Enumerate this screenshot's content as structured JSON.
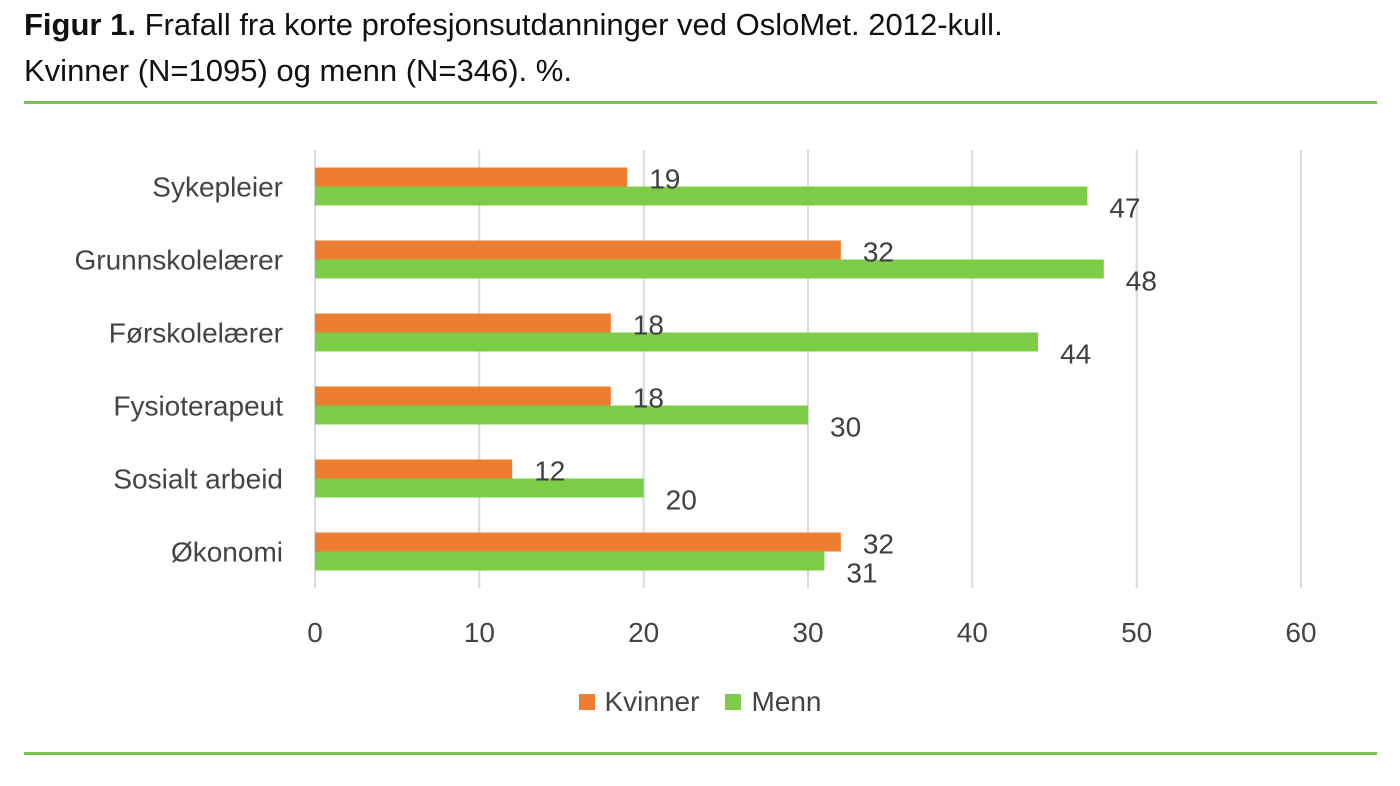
{
  "caption": {
    "label": "Figur 1.",
    "line1": "Frafall fra korte profesjonsutdanninger ved OsloMet. 2012-kull.",
    "line2": "Kvinner (N=1095) og menn (N=346). %."
  },
  "chart_data": {
    "type": "bar",
    "orientation": "horizontal",
    "title": "",
    "xlabel": "",
    "ylabel": "",
    "categories": [
      "Sykepleier",
      "Grunnskolelærer",
      "Førskolelærer",
      "Fysioterapeut",
      "Sosialt arbeid",
      "Økonomi"
    ],
    "series": [
      {
        "name": "Kvinner",
        "color": "#ed7d31",
        "values": [
          19,
          32,
          18,
          18,
          12,
          32
        ]
      },
      {
        "name": "Menn",
        "color": "#7ccc48",
        "values": [
          47,
          48,
          44,
          30,
          20,
          31
        ]
      }
    ],
    "xlim": [
      0,
      60
    ],
    "xticks": [
      0,
      10,
      20,
      30,
      40,
      50,
      60
    ],
    "grid": "vertical",
    "legend": "bottom-center",
    "data_labels": true
  },
  "colors": {
    "rule": "#7dc24f",
    "grid": "#d9d9d9",
    "axis_text": "#444444"
  }
}
